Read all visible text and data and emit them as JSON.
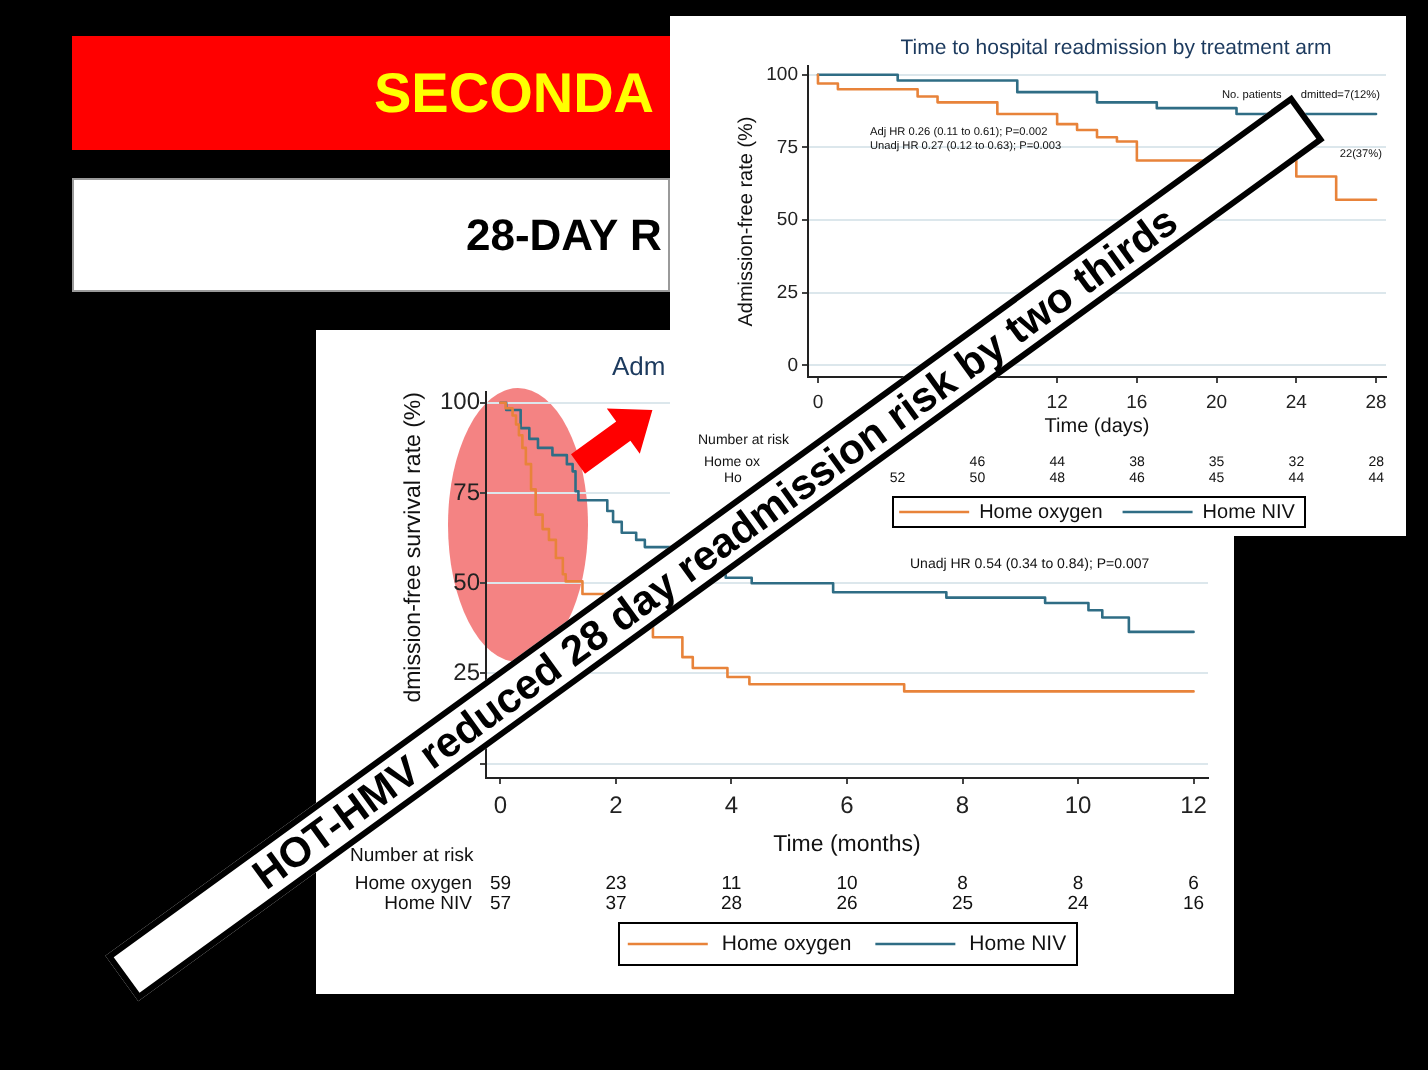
{
  "chart_data": [
    {
      "type": "other",
      "title": "SECONDA",
      "subtitle": "28-DAY R",
      "annotations": [
        "HOT-HMV reduced 28 day readmission risk by two thirds"
      ]
    },
    {
      "type": "step",
      "title": "Time to hospital readmission by treatment arm",
      "xlabel": "Time (days)",
      "ylabel": "Admission-free rate (%)",
      "xlim": [
        -0.5,
        28.5
      ],
      "xticks": [
        0,
        12,
        16,
        20,
        24,
        28
      ],
      "ylim": [
        -4,
        103
      ],
      "yticks": [
        0,
        25,
        50,
        75,
        100
      ],
      "grid": "y",
      "legend": "bottom",
      "marker": "none",
      "series": [
        {
          "name": "Home oxygen",
          "color": "#e8833a",
          "x": [
            0,
            0,
            1,
            5,
            6,
            9,
            12,
            13,
            14,
            15,
            16,
            24,
            26,
            28
          ],
          "values": [
            100,
            97,
            95,
            92.5,
            90.5,
            86.5,
            83,
            81,
            78.5,
            77,
            70.5,
            65,
            57,
            57
          ]
        },
        {
          "name": "Home NIV",
          "color": "#2f6d85",
          "x": [
            0,
            4,
            10,
            14,
            17,
            21,
            28
          ],
          "values": [
            100,
            98,
            94,
            90.5,
            88.5,
            86.5,
            86.5
          ]
        }
      ],
      "annotations": [
        "Adj HR 0.26 (0.11 to 0.61); P=0.002",
        "Unadj HR 0.27 (0.12 to 0.63); P=0.003",
        "No. patients",
        "dmitted=7(12%)",
        "22(37%)",
        "Number at risk",
        "Home ox",
        "Ho",
        "46",
        "44",
        "38",
        "35",
        "32",
        "28",
        "52",
        "50",
        "48",
        "46",
        "45",
        "44",
        "44"
      ]
    },
    {
      "type": "step",
      "title": "Adm",
      "xlabel": "Time (months)",
      "ylabel": "dmission-free survival rate (%)",
      "xlim": [
        -0.25,
        12.25
      ],
      "xticks": [
        0,
        2,
        4,
        6,
        8,
        10,
        12
      ],
      "ylim": [
        -4,
        103
      ],
      "yticks": [
        {
          "value": 0,
          "label": null
        },
        25,
        50,
        75,
        100
      ],
      "grid": "y",
      "legend": "bottom",
      "marker": "none",
      "series": [
        {
          "name": "Home oxygen",
          "color": "#e8833a",
          "x": [
            0,
            0.09,
            0.21,
            0.27,
            0.32,
            0.38,
            0.44,
            0.53,
            0.61,
            0.73,
            0.84,
            0.96,
            1.08,
            1.13,
            1.42,
            2.64,
            3.15,
            3.33,
            3.93,
            4.31,
            6.99,
            12
          ],
          "values": [
            100,
            98.5,
            96.5,
            94,
            91,
            87.5,
            83,
            76,
            69,
            65,
            62,
            57,
            52.5,
            50.5,
            47,
            35,
            29.5,
            26.5,
            24,
            22,
            20,
            20
          ]
        },
        {
          "name": "Home NIV",
          "color": "#2f6d85",
          "x": [
            0,
            0.1,
            0.35,
            0.5,
            0.65,
            0.9,
            1.15,
            1.25,
            1.3,
            1.35,
            1.85,
            1.95,
            2.1,
            2.35,
            2.5,
            3.9,
            4.35,
            5.76,
            7.72,
            9.43,
            10.18,
            10.42,
            10.88,
            12
          ],
          "values": [
            100,
            98,
            93,
            90,
            87.5,
            85.5,
            83,
            81,
            75.5,
            73,
            70,
            67,
            64,
            62,
            60,
            51.5,
            50,
            47.5,
            46,
            44.5,
            42.5,
            40.5,
            36.5,
            36.5
          ]
        }
      ],
      "annotations": [
        "Unadj HR 0.54 (0.34 to 0.84); P=0.007",
        "Number at risk",
        "Home oxygen",
        "Home NIV",
        "59",
        "23",
        "11",
        "10",
        "8",
        "8",
        "6",
        "57",
        "37",
        "28",
        "26",
        "25",
        "24",
        "16"
      ]
    }
  ]
}
